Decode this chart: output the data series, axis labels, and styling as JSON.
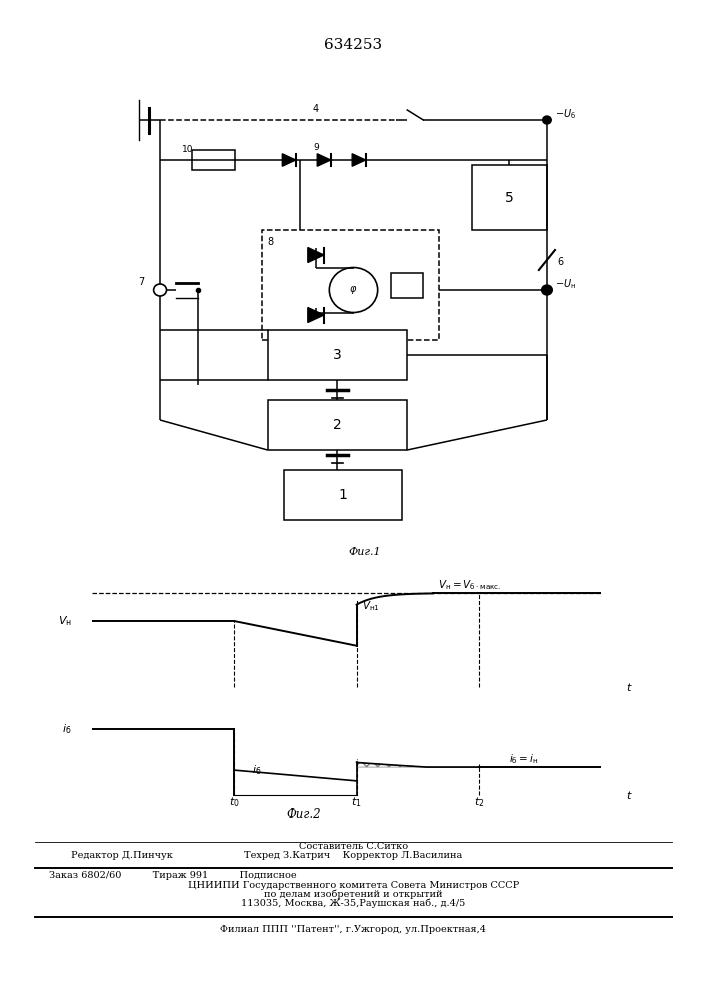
{
  "title": "634253",
  "fig1_caption": "Фиг.1",
  "fig2_caption": "Фиг.2",
  "footer_line1": "Составитель С.Ситко",
  "footer_line2": "Редактор Д.Пинчук",
  "footer_line3": "Техред З.Катрич    Корректор Л.Василина",
  "footer_line4": "Заказ 6802/60          Тираж 991          Подписное",
  "footer_line5": "ЦНИИПИ Государственного комитета Совета Министров СССР",
  "footer_line6": "по делам изобретений и открытий",
  "footer_line7": "113035, Москва, Ж-35,Раушская наб., д.4/5",
  "footer_line8": "Филиал ППП ''Патент'', г.Ужгород, ул.Проектная,4"
}
